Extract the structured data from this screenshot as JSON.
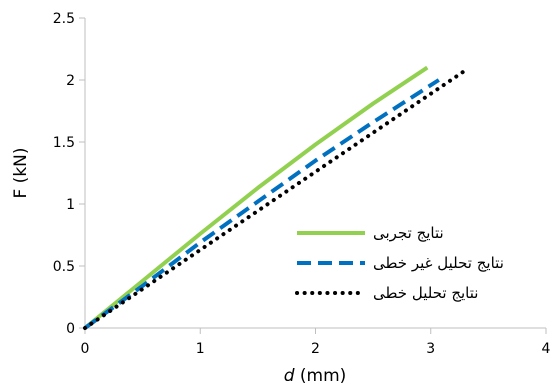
{
  "chart_data": {
    "type": "line",
    "title": "",
    "xlabel_italic": "d",
    "xlabel_unit": " (mm)",
    "ylabel": "F (kN)",
    "xlim": [
      0,
      4
    ],
    "ylim": [
      0,
      2.5
    ],
    "x_ticks": [
      "0",
      "1",
      "2",
      "3",
      "4"
    ],
    "y_ticks": [
      "0",
      "0.5",
      "1",
      "1.5",
      "2",
      "2.5"
    ],
    "grid": false,
    "legend_position": "center-right",
    "series": [
      {
        "name": "نتایج تجربی",
        "color": "#92D050",
        "style": "solid",
        "x": [
          0,
          0.5,
          1,
          1.5,
          2,
          2.5,
          2.97
        ],
        "y": [
          0,
          0.38,
          0.76,
          1.13,
          1.48,
          1.81,
          2.1
        ]
      },
      {
        "name": "نتایج تحلیل غیر خطی",
        "color": "#0070C0",
        "style": "dashed",
        "x": [
          0,
          0.5,
          1,
          1.5,
          2,
          2.5,
          3.07
        ],
        "y": [
          0,
          0.34,
          0.69,
          1.02,
          1.35,
          1.66,
          2.0
        ]
      },
      {
        "name": "نتایج تحلیل خطی",
        "color": "#000000",
        "style": "dotted",
        "x": [
          0,
          0.5,
          1,
          1.5,
          2,
          2.5,
          3.32
        ],
        "y": [
          0,
          0.315,
          0.63,
          0.945,
          1.26,
          1.575,
          2.09
        ]
      }
    ]
  }
}
